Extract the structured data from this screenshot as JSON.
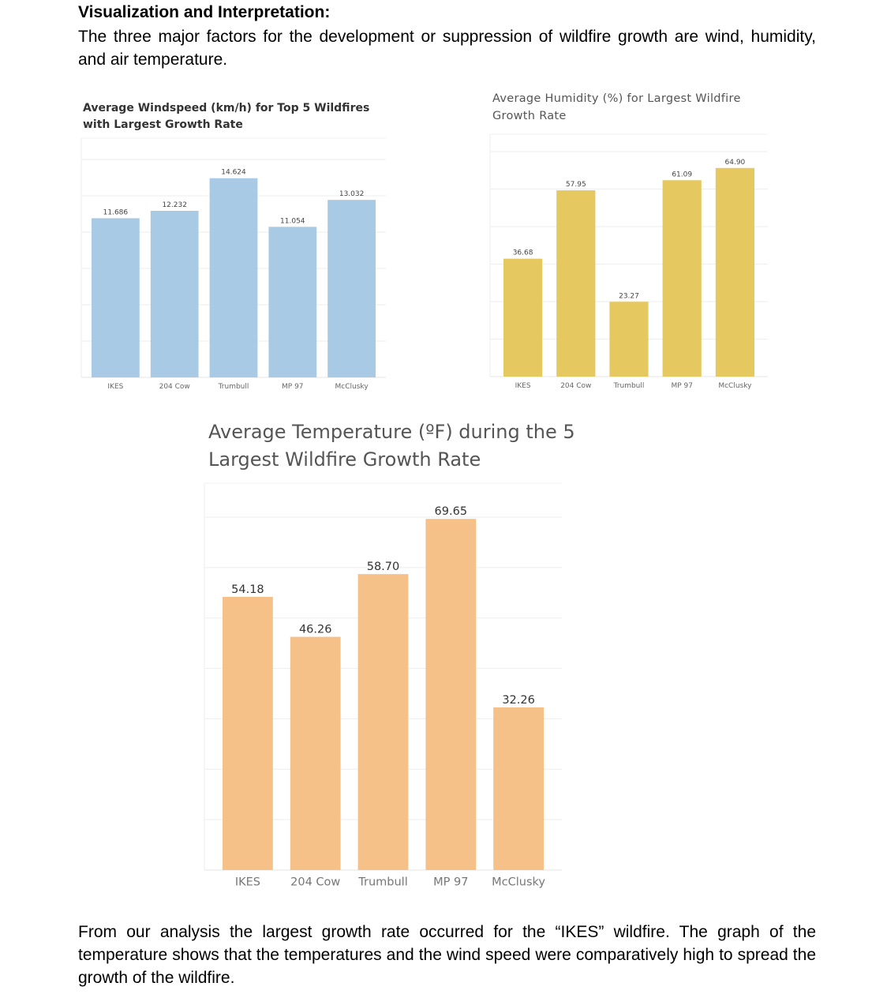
{
  "doc": {
    "heading": "Visualization and Interpretation:",
    "intro": "The three major factors for the development or suppression of wildfire growth are wind, humidity, and air temperature.",
    "outro": "From our analysis the largest growth rate occurred for the “IKES” wildfire. The graph of the temperature shows that the temperatures and the wind speed were comparatively high to spread the growth of the wildfire."
  },
  "chart_data": [
    {
      "type": "bar",
      "title": "Average Windspeed (km/h) for Top 5 Wildfires with Largest Growth Rate",
      "categories": [
        "IKES",
        "204 Cow",
        "Trumbull",
        "MP 97",
        "McClusky"
      ],
      "values": [
        11.686,
        12.232,
        14.624,
        11.054,
        13.032
      ],
      "value_labels": [
        "11.686",
        "12.232",
        "14.624",
        "11.054",
        "13.032"
      ],
      "ylim": [
        0,
        16
      ],
      "grid": true,
      "color": "#a9cae4"
    },
    {
      "type": "bar",
      "title": "Average Humidity (%) for Largest Wildfire Growth Rate",
      "categories": [
        "IKES",
        "204 Cow",
        "Trumbull",
        "MP 97",
        "McClusky"
      ],
      "values": [
        36.68,
        57.95,
        23.27,
        61.09,
        64.9
      ],
      "value_labels": [
        "36.68",
        "57.95",
        "23.27",
        "61.09",
        "64.90"
      ],
      "ylim": [
        0,
        70
      ],
      "grid": true,
      "color": "#e5c860"
    },
    {
      "type": "bar",
      "title": "Average Temperature (ºF) during the 5 Largest Wildfire Growth Rate",
      "categories": [
        "IKES",
        "204 Cow",
        "Trumbull",
        "MP 97",
        "McClusky"
      ],
      "values": [
        54.18,
        46.26,
        58.7,
        69.65,
        32.26
      ],
      "value_labels": [
        "54.18",
        "46.26",
        "58.70",
        "69.65",
        "32.26"
      ],
      "ylim": [
        0,
        70
      ],
      "grid": true,
      "color": "#f5c189"
    }
  ]
}
